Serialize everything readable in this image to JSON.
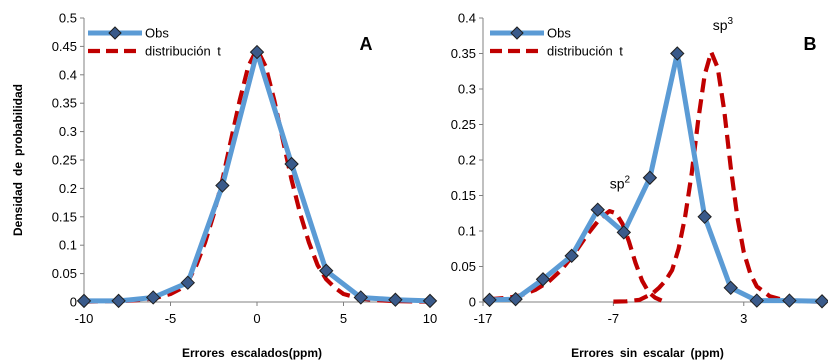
{
  "chart_data": [
    {
      "type": "line",
      "panel_label": "A",
      "xlabel": "Errores escalados(ppm)",
      "ylabel": "Densidad de probabilidad",
      "xlim": [
        -10,
        10
      ],
      "ylim": [
        0,
        0.5
      ],
      "xticks": [
        "-10",
        "-5",
        "0",
        "5",
        "10"
      ],
      "yticks": [
        "0",
        "0.05",
        "0.1",
        "0.15",
        "0.2",
        "0.25",
        "0.3",
        "0.35",
        "0.4",
        "0.45",
        "0.5"
      ],
      "legend_position": "top-left",
      "series": [
        {
          "name": "Obs",
          "style": "solid-with-diamond-markers",
          "color": "#5B9BD5",
          "marker_color": "#3A5A8A",
          "x": [
            -10,
            -8,
            -6,
            -4,
            -2,
            0,
            2,
            4,
            6,
            8,
            10
          ],
          "y": [
            0.002,
            0.002,
            0.008,
            0.034,
            0.205,
            0.44,
            0.243,
            0.055,
            0.008,
            0.004,
            0.002
          ]
        },
        {
          "name": "distribución t",
          "style": "dashed",
          "color": "#C00000",
          "x": [
            -10,
            -9,
            -8,
            -7,
            -6,
            -5,
            -4.5,
            -4,
            -3.5,
            -3,
            -2.5,
            -2,
            -1.5,
            -1,
            -0.5,
            0,
            0.5,
            1,
            1.5,
            2,
            2.5,
            3,
            3.5,
            4,
            4.5,
            5,
            6,
            7,
            8,
            9,
            10
          ],
          "y": [
            0.0005,
            0.001,
            0.0015,
            0.003,
            0.006,
            0.014,
            0.022,
            0.035,
            0.065,
            0.105,
            0.155,
            0.215,
            0.285,
            0.355,
            0.415,
            0.445,
            0.415,
            0.355,
            0.285,
            0.215,
            0.155,
            0.105,
            0.065,
            0.04,
            0.025,
            0.014,
            0.006,
            0.003,
            0.0015,
            0.001,
            0.0005
          ]
        }
      ]
    },
    {
      "type": "line",
      "panel_label": "B",
      "xlabel": "Errores sin escalar (ppm)",
      "ylabel": "",
      "xlim": [
        -17,
        9
      ],
      "ylim": [
        0,
        0.4
      ],
      "xticks": [
        "-17",
        "-7",
        "3"
      ],
      "yticks": [
        "0",
        "0.05",
        "0.1",
        "0.15",
        "0.2",
        "0.25",
        "0.3",
        "0.35",
        "0.4"
      ],
      "legend_position": "top-left",
      "annotations": [
        {
          "base": "sp",
          "sup": "2",
          "x": -6.5,
          "y": 0.16
        },
        {
          "base": "sp",
          "sup": "3",
          "x": 1.4,
          "y": 0.383
        }
      ],
      "series": [
        {
          "name": "Obs",
          "style": "solid-with-diamond-markers",
          "color": "#5B9BD5",
          "marker_color": "#3A5A8A",
          "x": [
            -16.5,
            -14.5,
            -12.4,
            -10.2,
            -8.2,
            -6.2,
            -4.2,
            -2.1,
            0,
            2,
            4,
            6.5,
            9
          ],
          "y": [
            0.003,
            0.004,
            0.032,
            0.065,
            0.13,
            0.098,
            0.175,
            0.35,
            0.12,
            0.02,
            0.002,
            0.002,
            0.001
          ]
        },
        {
          "name": "distribución t",
          "style": "dashed",
          "color": "#C00000",
          "x": [
            -16.5,
            -15,
            -14,
            -13,
            -12,
            -11,
            -10,
            -9,
            -8,
            -7.3,
            -6.8,
            -6.3,
            -5.8,
            -5.3,
            -4.8,
            -4.3,
            -3.8,
            -3.3
          ],
          "y": [
            0.004,
            0.006,
            0.01,
            0.017,
            0.028,
            0.045,
            0.068,
            0.095,
            0.118,
            0.128,
            0.125,
            0.11,
            0.085,
            0.055,
            0.03,
            0.014,
            0.006,
            0.002
          ]
        },
        {
          "name": "distribución t",
          "style": "dashed",
          "color": "#C00000",
          "x": [
            -7,
            -6,
            -5,
            -4,
            -3.5,
            -3,
            -2.5,
            -2,
            -1.5,
            -1,
            -0.5,
            0,
            0.5,
            1,
            1.5,
            2,
            2.5,
            3,
            3.5,
            4,
            5,
            6,
            7,
            8,
            9
          ],
          "y": [
            0.0005,
            0.001,
            0.003,
            0.012,
            0.02,
            0.03,
            0.045,
            0.075,
            0.12,
            0.18,
            0.255,
            0.32,
            0.352,
            0.33,
            0.27,
            0.19,
            0.12,
            0.07,
            0.04,
            0.022,
            0.008,
            0.003,
            0.0015,
            0.0008,
            0.0005
          ]
        }
      ]
    }
  ]
}
